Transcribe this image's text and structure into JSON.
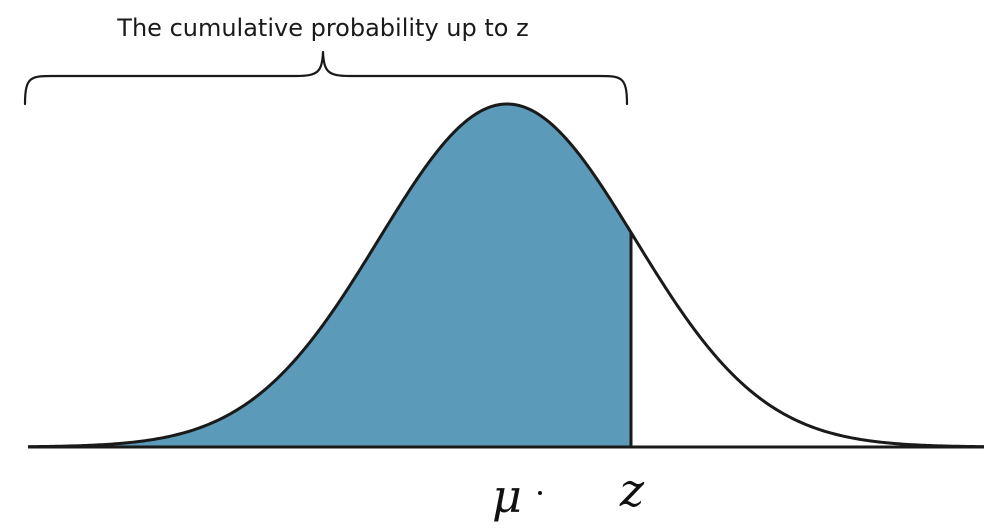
{
  "diagram": {
    "caption": "The cumulative probability up to z",
    "mean_symbol": "μ",
    "z_symbol": "z",
    "shaded_color": "#5b9bb9",
    "line_color": "#1a1a1a"
  }
}
